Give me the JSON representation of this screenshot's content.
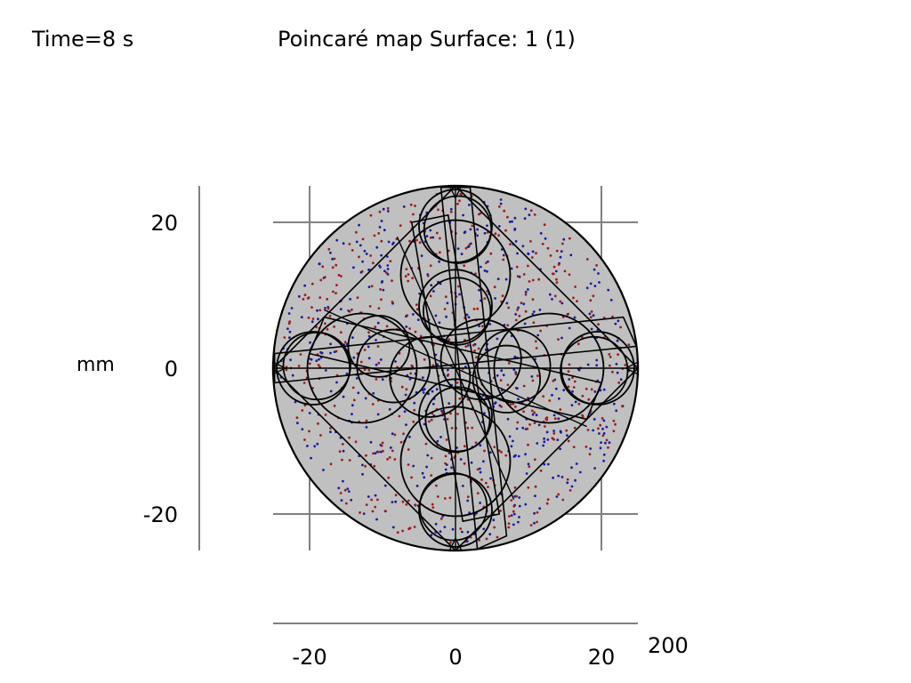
{
  "header": {
    "time_label": "Time=8 s",
    "title": "Poincaré map  Surface: 1 (1)"
  },
  "axes": {
    "y_unit": "mm",
    "corner_label": "200"
  },
  "chart_data": {
    "type": "scatter",
    "title": "Poincaré map  Surface: 1 (1)",
    "xlabel": "",
    "ylabel": "mm",
    "xlim": [
      -25,
      25
    ],
    "ylim": [
      -25,
      25
    ],
    "x_ticks": [
      -20,
      0,
      20
    ],
    "y_ticks": [
      20,
      0,
      -20
    ],
    "x_tick_labels": [
      "-20",
      "0",
      "20"
    ],
    "y_tick_labels": [
      "20",
      "0",
      "-20"
    ],
    "grid": true,
    "legend": "none",
    "background_disk": {
      "center": [
        0,
        0
      ],
      "radius": 25,
      "fill": "#c0c0c0"
    },
    "series": [
      {
        "color": "#1a1aa0",
        "count": 520,
        "region": "disk",
        "radius": 24
      },
      {
        "color": "#a01a1a",
        "count": 520,
        "region": "disk",
        "radius": 24
      }
    ],
    "geometry_circles": [
      {
        "cx": 0,
        "cy": 19.5,
        "r": 5.0
      },
      {
        "cx": 0.3,
        "cy": 19.0,
        "r": 4.6
      },
      {
        "cx": 0,
        "cy": -19.5,
        "r": 5.0
      },
      {
        "cx": -0.3,
        "cy": -19.0,
        "r": 4.6
      },
      {
        "cx": 19.5,
        "cy": 0,
        "r": 5.0
      },
      {
        "cx": 19.0,
        "cy": -0.3,
        "r": 4.6
      },
      {
        "cx": -19.5,
        "cy": 0,
        "r": 5.0
      },
      {
        "cx": -19.0,
        "cy": 0.3,
        "r": 4.6
      },
      {
        "cx": 0,
        "cy": 8.5,
        "r": 5.0
      },
      {
        "cx": 0.2,
        "cy": 7.8,
        "r": 4.6
      },
      {
        "cx": 0,
        "cy": -6.5,
        "r": 5.0
      },
      {
        "cx": 0.3,
        "cy": -7.0,
        "r": 4.4
      },
      {
        "cx": 8.0,
        "cy": 0.3,
        "r": 5.0
      },
      {
        "cx": 7.0,
        "cy": -1.5,
        "r": 4.6
      },
      {
        "cx": -8.5,
        "cy": 0.3,
        "r": 5.0
      },
      {
        "cx": -10.5,
        "cy": 3.0,
        "r": 4.2
      },
      {
        "cx": 0,
        "cy": 12.8,
        "r": 7.5
      },
      {
        "cx": 12.8,
        "cy": 0,
        "r": 7.5
      },
      {
        "cx": 0,
        "cy": -12.8,
        "r": 7.5
      },
      {
        "cx": -12.8,
        "cy": 0,
        "r": 7.5
      },
      {
        "cx": 3.5,
        "cy": 1.2,
        "r": 5.5
      },
      {
        "cx": -3.5,
        "cy": -1.2,
        "r": 5.5
      }
    ],
    "geometry_polygons": [
      [
        [
          0,
          25
        ],
        [
          25,
          0
        ],
        [
          0,
          -25
        ],
        [
          -25,
          0
        ]
      ],
      [
        [
          -2,
          24.8
        ],
        [
          2,
          24.8
        ],
        [
          7,
          -23
        ],
        [
          3,
          -24.8
        ]
      ],
      [
        [
          -24.8,
          -2
        ],
        [
          -24.8,
          2
        ],
        [
          23,
          7
        ],
        [
          24.8,
          3
        ]
      ],
      [
        [
          -18,
          7
        ],
        [
          -20,
          2
        ],
        [
          18,
          -7
        ],
        [
          20,
          -2
        ]
      ],
      [
        [
          -6,
          20
        ],
        [
          -1,
          21
        ],
        [
          6,
          -20
        ],
        [
          1,
          -21
        ]
      ]
    ],
    "geometry_lines": [
      [
        [
          -25,
          0
        ],
        [
          25,
          0
        ]
      ],
      [
        [
          0,
          25
        ],
        [
          0,
          -25
        ]
      ],
      [
        [
          -18,
          8
        ],
        [
          18,
          -8
        ]
      ],
      [
        [
          -8,
          18
        ],
        [
          8,
          -18
        ]
      ]
    ],
    "geometry_markers": [
      {
        "x": 0,
        "y": 24.2,
        "dir": "down"
      },
      {
        "x": 0,
        "y": -24.2,
        "dir": "up"
      },
      {
        "x": 24.2,
        "y": 0,
        "dir": "left"
      },
      {
        "x": -24.2,
        "y": 0,
        "dir": "right"
      }
    ]
  }
}
